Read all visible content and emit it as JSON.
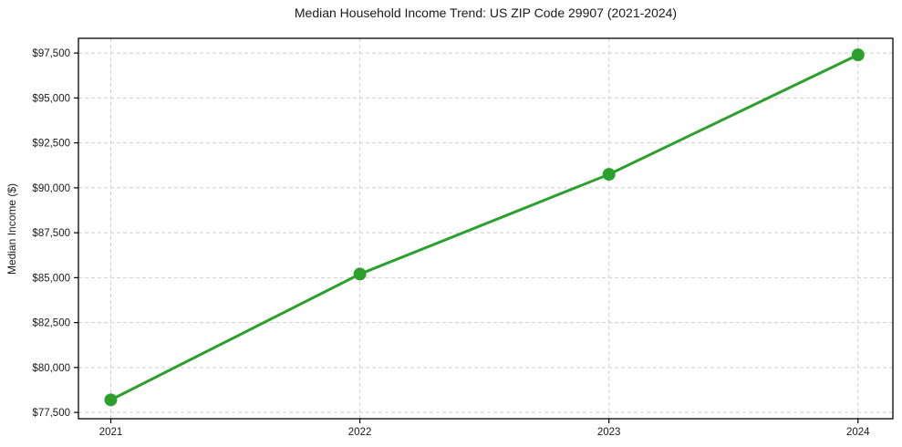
{
  "chart_data": {
    "type": "line",
    "title": "Median Household Income Trend: US ZIP Code 29907 (2021-2024)",
    "xlabel": "",
    "ylabel": "Median Income ($)",
    "x": [
      2021,
      2022,
      2023,
      2024
    ],
    "x_tick_labels": [
      "2021",
      "2022",
      "2023",
      "2024"
    ],
    "values": [
      78200,
      85200,
      90750,
      97400
    ],
    "y_ticks": [
      77500,
      80000,
      82500,
      85000,
      87500,
      90000,
      92500,
      95000,
      97500
    ],
    "y_tick_labels": [
      "$77,500",
      "$80,000",
      "$82,500",
      "$85,000",
      "$87,500",
      "$90,000",
      "$92,500",
      "$95,000",
      "$97,500"
    ],
    "xlim": [
      2020.87,
      2024.14
    ],
    "ylim": [
      77150,
      98320
    ],
    "grid": "dashed",
    "legend": "none",
    "colors": {
      "line": "#2ca02c",
      "marker": "#2ca02c",
      "grid": "#cfcfcf",
      "axis": "#000000",
      "background": "#ffffff",
      "text": "#1a1a1a"
    }
  }
}
